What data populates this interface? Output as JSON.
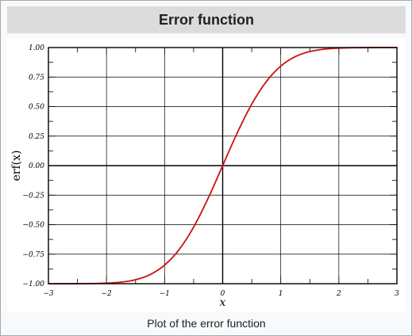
{
  "infobox": {
    "title": "Error function",
    "caption": "Plot of the error function"
  },
  "colors": {
    "curve": "#cc1111",
    "grid": "#000000",
    "title_bg": "#dcdcdc",
    "panel_bg": "#f8f9fa"
  },
  "chart_data": {
    "type": "line",
    "title": "",
    "xlabel": "x",
    "ylabel": "erf(x)",
    "xlim": [
      -3,
      3
    ],
    "ylim": [
      -1,
      1
    ],
    "grid": true,
    "legend": "none",
    "x_ticks": [
      -3,
      -2,
      -1,
      0,
      1,
      2,
      3
    ],
    "x_tick_labels": [
      "−3",
      "−2",
      "−1",
      "0",
      "1",
      "2",
      "3"
    ],
    "y_ticks": [
      1.0,
      0.75,
      0.5,
      0.25,
      0.0,
      -0.25,
      -0.5,
      -0.75,
      -1.0
    ],
    "y_tick_labels": [
      "1.00",
      "0.75",
      "0.50",
      "0.25",
      "0.00",
      "−0.25",
      "−0.50",
      "−0.75",
      "−1.00"
    ],
    "series": [
      {
        "x": [
          -3.0,
          -2.75,
          -2.5,
          -2.25,
          -2.0,
          -1.75,
          -1.5,
          -1.25,
          -1.0,
          -0.75,
          -0.5,
          -0.25,
          0.0,
          0.25,
          0.5,
          0.75,
          1.0,
          1.25,
          1.5,
          1.75,
          2.0,
          2.25,
          2.5,
          2.75,
          3.0
        ],
        "y": [
          -1.0,
          -0.9999,
          -0.9996,
          -0.9985,
          -0.9953,
          -0.9867,
          -0.9661,
          -0.9229,
          -0.8427,
          -0.7112,
          -0.5205,
          -0.2763,
          0.0,
          0.2763,
          0.5205,
          0.7112,
          0.8427,
          0.9229,
          0.9661,
          0.9867,
          0.9953,
          0.9985,
          0.9996,
          0.9999,
          1.0
        ]
      }
    ]
  }
}
